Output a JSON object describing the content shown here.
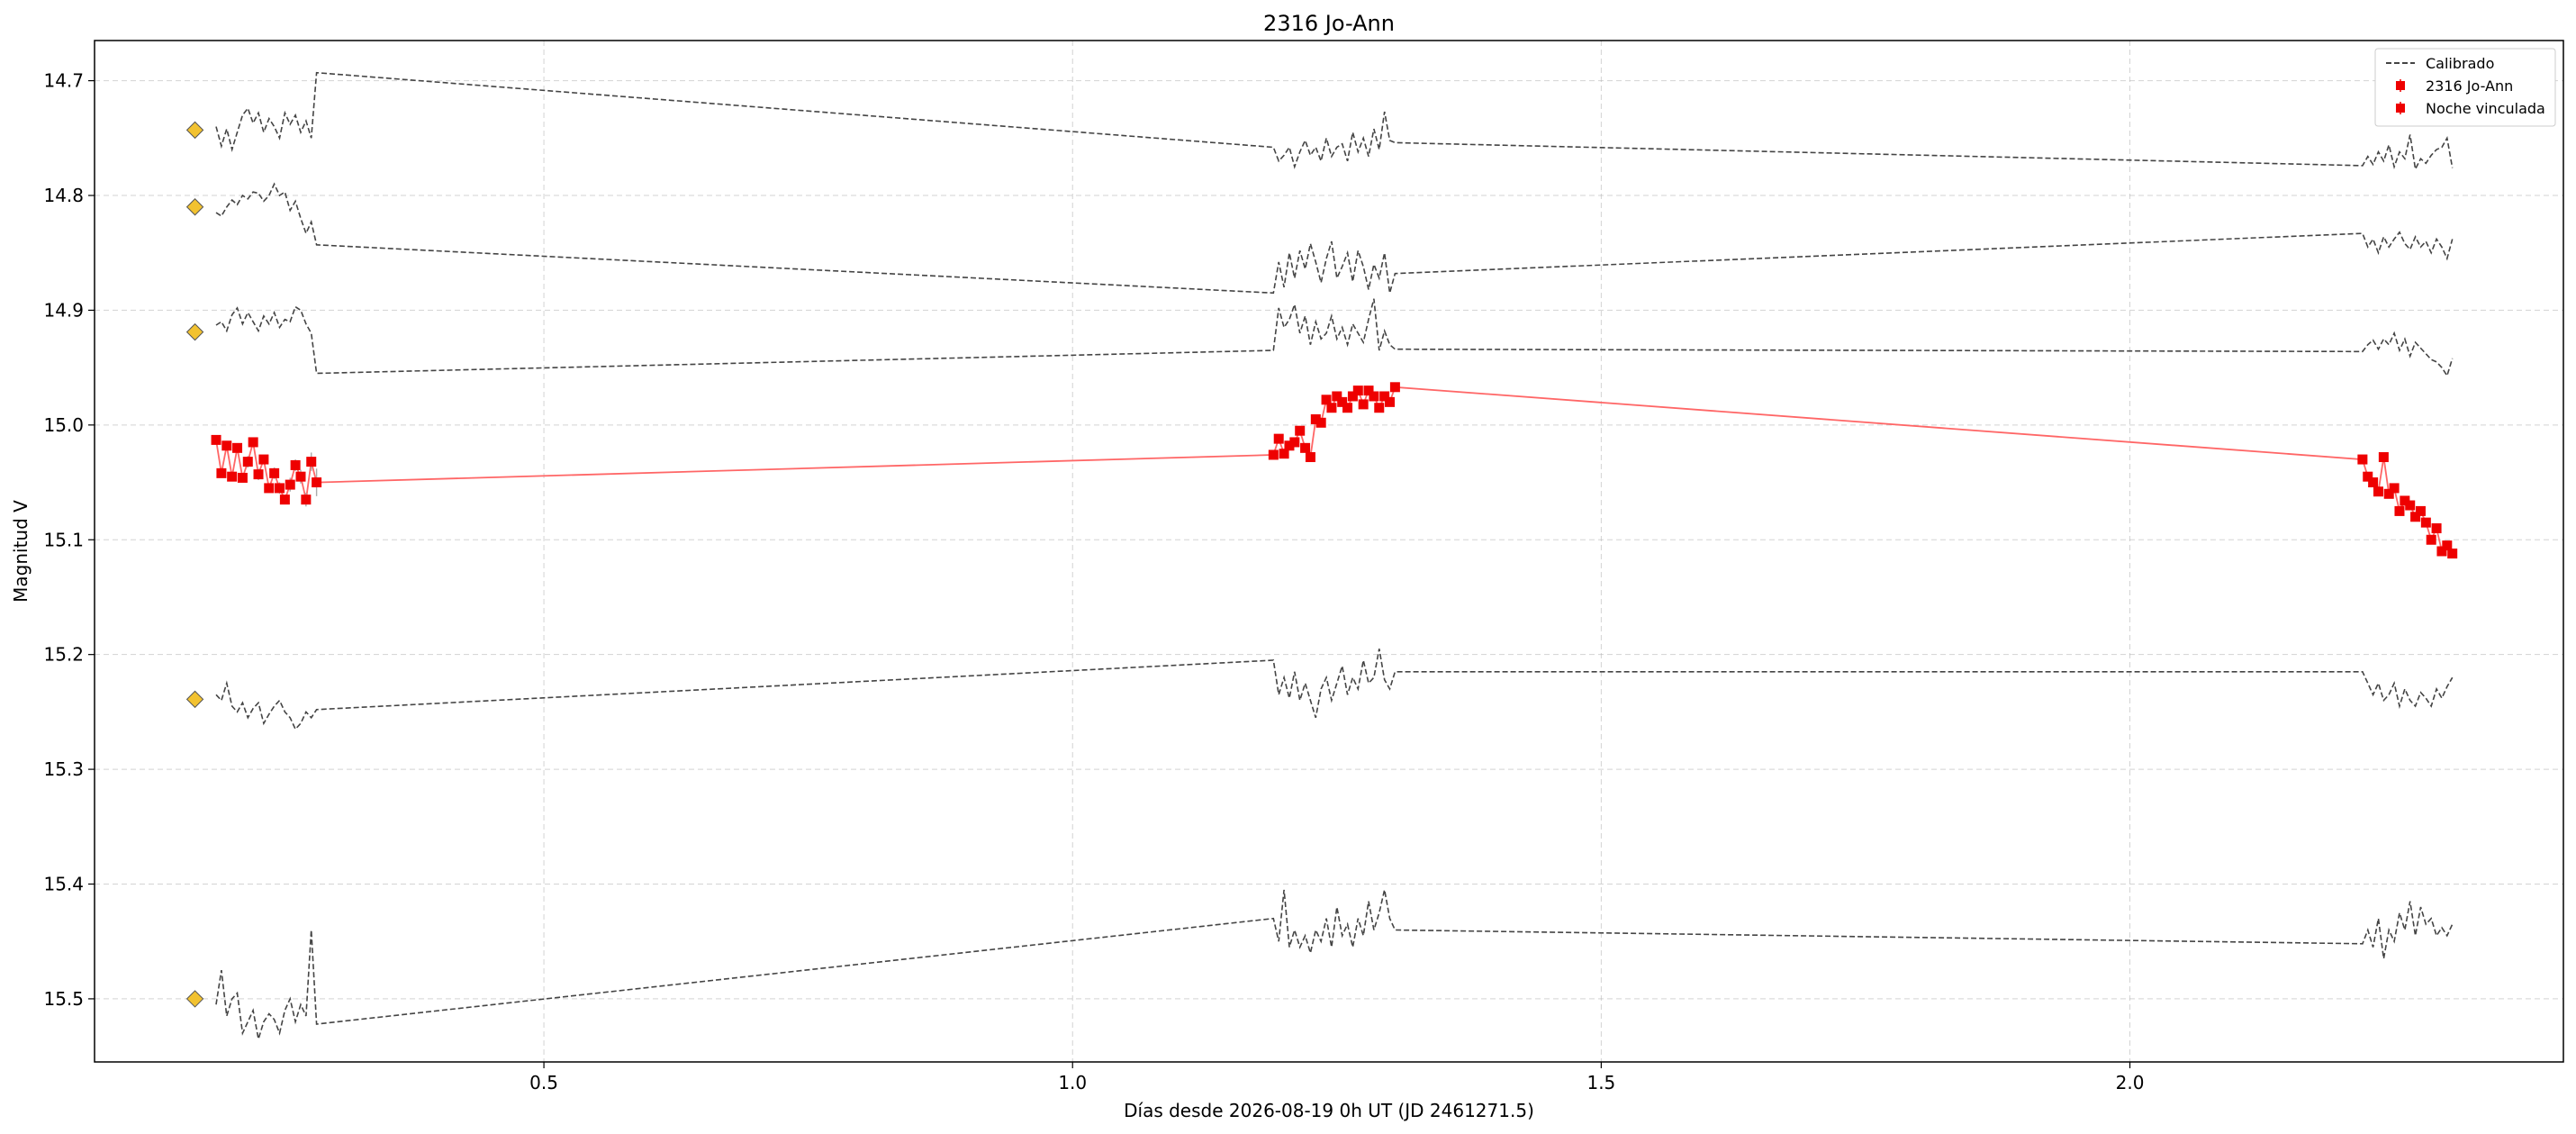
{
  "chart_data": {
    "type": "line",
    "title": "2316 Jo-Ann",
    "xlabel": "Días desde 2026-08-19 0h UT (JD 2461271.5)",
    "ylabel": "Magnitud V",
    "xlim": [
      0.075,
      2.41
    ],
    "ylim": [
      15.555,
      14.665
    ],
    "y_inverted": true,
    "grid": true,
    "legend_position": "top-right",
    "x_ticks": [
      0.5,
      1.0,
      1.5,
      2.0
    ],
    "x_tick_labels": [
      "0.5",
      "1.0",
      "1.5",
      "2.0"
    ],
    "y_ticks": [
      14.7,
      14.8,
      14.9,
      15.0,
      15.1,
      15.2,
      15.3,
      15.4,
      15.5
    ],
    "y_tick_labels": [
      "14.7",
      "14.8",
      "14.9",
      "15.0",
      "15.1",
      "15.2",
      "15.3",
      "15.4",
      "15.5"
    ],
    "legend": [
      {
        "label": "Calibrado",
        "style": "dashed-line",
        "color": "#444444"
      },
      {
        "label": "2316 Jo-Ann",
        "style": "red-square-errorbar",
        "color": "#ee0000"
      },
      {
        "label": "Noche vinculada",
        "style": "red-square-errorbar",
        "color": "#ee0000"
      }
    ],
    "colors": {
      "target": "#ee0000",
      "target_line": "#ff6666",
      "comparison": "#444444",
      "marker_fill": "#f2c230",
      "errorbar": "#aaaaaa"
    },
    "comparison_series": [
      {
        "base": 14.743,
        "x": [
          0.19,
          0.195,
          0.2,
          0.205,
          0.21,
          0.215,
          0.22,
          0.225,
          0.23,
          0.235,
          0.24,
          0.245,
          0.25,
          0.255,
          0.26,
          0.265,
          0.27,
          0.275,
          0.28,
          0.285,
          1.19,
          1.195,
          1.2,
          1.205,
          1.21,
          1.215,
          1.22,
          1.225,
          1.23,
          1.235,
          1.24,
          1.245,
          1.25,
          1.255,
          1.26,
          1.265,
          1.27,
          1.275,
          1.28,
          1.285,
          1.29,
          1.295,
          1.3,
          1.305,
          2.22,
          2.225,
          2.23,
          2.235,
          2.24,
          2.245,
          2.25,
          2.255,
          2.26,
          2.265,
          2.27,
          2.275,
          2.28,
          2.285,
          2.29,
          2.295,
          2.3,
          2.305
        ],
        "y": [
          14.74,
          14.757,
          14.742,
          14.76,
          14.745,
          14.73,
          14.724,
          14.737,
          14.728,
          14.745,
          14.733,
          14.74,
          14.75,
          14.728,
          14.738,
          14.73,
          14.745,
          14.735,
          14.75,
          14.693,
          14.758,
          14.77,
          14.765,
          14.758,
          14.775,
          14.762,
          14.752,
          14.765,
          14.758,
          14.77,
          14.75,
          14.766,
          14.758,
          14.755,
          14.77,
          14.745,
          14.762,
          14.75,
          14.766,
          14.742,
          14.76,
          14.727,
          14.752,
          14.754,
          14.774,
          14.766,
          14.773,
          14.762,
          14.77,
          14.756,
          14.775,
          14.762,
          14.768,
          14.747,
          14.777,
          14.768,
          14.772,
          14.765,
          14.76,
          14.758,
          14.75,
          14.776
        ]
      },
      {
        "base": 14.81,
        "x": [
          0.19,
          0.195,
          0.2,
          0.205,
          0.21,
          0.215,
          0.22,
          0.225,
          0.23,
          0.235,
          0.24,
          0.245,
          0.25,
          0.255,
          0.26,
          0.265,
          0.27,
          0.275,
          0.28,
          0.285,
          1.19,
          1.195,
          1.2,
          1.205,
          1.21,
          1.215,
          1.22,
          1.225,
          1.23,
          1.235,
          1.24,
          1.245,
          1.25,
          1.255,
          1.26,
          1.265,
          1.27,
          1.275,
          1.28,
          1.285,
          1.29,
          1.295,
          1.3,
          1.305,
          2.22,
          2.225,
          2.23,
          2.235,
          2.24,
          2.245,
          2.25,
          2.255,
          2.26,
          2.265,
          2.27,
          2.275,
          2.28,
          2.285,
          2.29,
          2.295,
          2.3,
          2.305
        ],
        "y": [
          14.815,
          14.818,
          14.81,
          14.804,
          14.808,
          14.8,
          14.803,
          14.797,
          14.798,
          14.805,
          14.8,
          14.79,
          14.8,
          14.797,
          14.813,
          14.805,
          14.82,
          14.833,
          14.823,
          14.843,
          14.885,
          14.858,
          14.88,
          14.85,
          14.872,
          14.848,
          14.864,
          14.842,
          14.858,
          14.876,
          14.855,
          14.84,
          14.872,
          14.862,
          14.85,
          14.875,
          14.848,
          14.862,
          14.882,
          14.86,
          14.872,
          14.85,
          14.885,
          14.868,
          14.833,
          14.845,
          14.838,
          14.85,
          14.836,
          14.845,
          14.838,
          14.832,
          14.842,
          14.847,
          14.836,
          14.845,
          14.84,
          14.85,
          14.838,
          14.845,
          14.855,
          14.838
        ]
      },
      {
        "base": 14.919,
        "x": [
          0.19,
          0.195,
          0.2,
          0.205,
          0.21,
          0.215,
          0.22,
          0.225,
          0.23,
          0.235,
          0.24,
          0.245,
          0.25,
          0.255,
          0.26,
          0.265,
          0.27,
          0.275,
          0.28,
          0.285,
          1.19,
          1.195,
          1.2,
          1.205,
          1.21,
          1.215,
          1.22,
          1.225,
          1.23,
          1.235,
          1.24,
          1.245,
          1.25,
          1.255,
          1.26,
          1.265,
          1.27,
          1.275,
          1.28,
          1.285,
          1.29,
          1.295,
          1.3,
          1.305,
          2.22,
          2.225,
          2.23,
          2.235,
          2.24,
          2.245,
          2.25,
          2.255,
          2.26,
          2.265,
          2.27,
          2.275,
          2.28,
          2.285,
          2.29,
          2.295,
          2.3,
          2.305
        ],
        "y": [
          14.913,
          14.91,
          14.918,
          14.904,
          14.898,
          14.912,
          14.902,
          14.91,
          14.918,
          14.905,
          14.912,
          14.902,
          14.915,
          14.908,
          14.91,
          14.897,
          14.9,
          14.912,
          14.92,
          14.955,
          14.935,
          14.898,
          14.915,
          14.908,
          14.895,
          14.92,
          14.905,
          14.93,
          14.91,
          14.925,
          14.92,
          14.905,
          14.925,
          14.915,
          14.93,
          14.912,
          14.92,
          14.928,
          14.908,
          14.89,
          14.935,
          14.918,
          14.93,
          14.934,
          14.936,
          14.93,
          14.926,
          14.934,
          14.925,
          14.93,
          14.92,
          14.935,
          14.925,
          14.94,
          14.928,
          14.933,
          14.938,
          14.943,
          14.945,
          14.95,
          14.957,
          14.942
        ]
      },
      {
        "base": 15.239,
        "x": [
          0.19,
          0.195,
          0.2,
          0.205,
          0.21,
          0.215,
          0.22,
          0.225,
          0.23,
          0.235,
          0.24,
          0.245,
          0.25,
          0.255,
          0.26,
          0.265,
          0.27,
          0.275,
          0.28,
          0.285,
          1.19,
          1.195,
          1.2,
          1.205,
          1.21,
          1.215,
          1.22,
          1.225,
          1.23,
          1.235,
          1.24,
          1.245,
          1.25,
          1.255,
          1.26,
          1.265,
          1.27,
          1.275,
          1.28,
          1.285,
          1.29,
          1.295,
          1.3,
          1.305,
          2.22,
          2.225,
          2.23,
          2.235,
          2.24,
          2.245,
          2.25,
          2.255,
          2.26,
          2.265,
          2.27,
          2.275,
          2.28,
          2.285,
          2.29,
          2.295,
          2.3,
          2.305
        ],
        "y": [
          15.235,
          15.24,
          15.225,
          15.245,
          15.25,
          15.242,
          15.255,
          15.247,
          15.242,
          15.26,
          15.252,
          15.245,
          15.24,
          15.25,
          15.255,
          15.265,
          15.26,
          15.25,
          15.255,
          15.248,
          15.205,
          15.235,
          15.22,
          15.238,
          15.215,
          15.24,
          15.225,
          15.24,
          15.255,
          15.23,
          15.22,
          15.24,
          15.225,
          15.21,
          15.235,
          15.22,
          15.23,
          15.205,
          15.225,
          15.22,
          15.195,
          15.222,
          15.23,
          15.215,
          15.215,
          15.225,
          15.235,
          15.225,
          15.24,
          15.235,
          15.225,
          15.245,
          15.23,
          15.24,
          15.245,
          15.233,
          15.238,
          15.245,
          15.23,
          15.238,
          15.228,
          15.22
        ]
      },
      {
        "base": 15.5,
        "x": [
          0.19,
          0.195,
          0.2,
          0.205,
          0.21,
          0.215,
          0.22,
          0.225,
          0.23,
          0.235,
          0.24,
          0.245,
          0.25,
          0.255,
          0.26,
          0.265,
          0.27,
          0.275,
          0.28,
          0.285,
          1.19,
          1.195,
          1.2,
          1.205,
          1.21,
          1.215,
          1.22,
          1.225,
          1.23,
          1.235,
          1.24,
          1.245,
          1.25,
          1.255,
          1.26,
          1.265,
          1.27,
          1.275,
          1.28,
          1.285,
          1.29,
          1.295,
          1.3,
          1.305,
          2.22,
          2.225,
          2.23,
          2.235,
          2.24,
          2.245,
          2.25,
          2.255,
          2.26,
          2.265,
          2.27,
          2.275,
          2.28,
          2.285,
          2.29,
          2.295,
          2.3,
          2.305
        ],
        "y": [
          15.505,
          15.475,
          15.515,
          15.5,
          15.495,
          15.53,
          15.52,
          15.51,
          15.535,
          15.52,
          15.513,
          15.518,
          15.53,
          15.51,
          15.5,
          15.52,
          15.505,
          15.515,
          15.44,
          15.522,
          15.43,
          15.45,
          15.405,
          15.455,
          15.44,
          15.455,
          15.445,
          15.46,
          15.44,
          15.45,
          15.43,
          15.455,
          15.42,
          15.445,
          15.435,
          15.455,
          15.43,
          15.445,
          15.415,
          15.44,
          15.425,
          15.405,
          15.43,
          15.44,
          15.452,
          15.44,
          15.455,
          15.43,
          15.465,
          15.44,
          15.45,
          15.425,
          15.44,
          15.415,
          15.445,
          15.42,
          15.435,
          15.43,
          15.445,
          15.438,
          15.445,
          15.435
        ]
      }
    ],
    "target_series": {
      "name": "2316 Jo-Ann",
      "x": [
        0.19,
        0.195,
        0.2,
        0.205,
        0.21,
        0.215,
        0.22,
        0.225,
        0.23,
        0.235,
        0.24,
        0.245,
        0.25,
        0.255,
        0.26,
        0.265,
        0.27,
        0.275,
        0.28,
        0.285,
        1.19,
        1.195,
        1.2,
        1.205,
        1.21,
        1.215,
        1.22,
        1.225,
        1.23,
        1.235,
        1.24,
        1.245,
        1.25,
        1.255,
        1.26,
        1.265,
        1.27,
        1.275,
        1.28,
        1.285,
        1.29,
        1.295,
        1.3,
        1.305,
        2.22,
        2.225,
        2.23,
        2.235,
        2.24,
        2.245,
        2.25,
        2.255,
        2.26,
        2.265,
        2.27,
        2.275,
        2.28,
        2.285,
        2.29,
        2.295,
        2.3,
        2.305
      ],
      "y": [
        15.013,
        15.042,
        15.018,
        15.045,
        15.02,
        15.046,
        15.032,
        15.015,
        15.043,
        15.03,
        15.055,
        15.042,
        15.055,
        15.065,
        15.052,
        15.035,
        15.045,
        15.065,
        15.032,
        15.05,
        15.026,
        15.012,
        15.025,
        15.018,
        15.015,
        15.005,
        15.02,
        15.028,
        14.995,
        14.998,
        14.978,
        14.985,
        14.975,
        14.98,
        14.985,
        14.975,
        14.97,
        14.982,
        14.97,
        14.975,
        14.985,
        14.975,
        14.98,
        14.967,
        15.03,
        15.045,
        15.05,
        15.058,
        15.028,
        15.06,
        15.055,
        15.075,
        15.066,
        15.07,
        15.08,
        15.075,
        15.085,
        15.1,
        15.09,
        15.11,
        15.105,
        15.112
      ],
      "err": [
        0.003,
        0.003,
        0.004,
        0.003,
        0.004,
        0.003,
        0.005,
        0.004,
        0.005,
        0.003,
        0.004,
        0.005,
        0.005,
        0.004,
        0.006,
        0.005,
        0.006,
        0.006,
        0.008,
        0.012,
        0.003,
        0.003,
        0.003,
        0.003,
        0.003,
        0.003,
        0.003,
        0.003,
        0.003,
        0.003,
        0.003,
        0.003,
        0.003,
        0.003,
        0.003,
        0.003,
        0.003,
        0.003,
        0.003,
        0.003,
        0.003,
        0.003,
        0.003,
        0.003,
        0.004,
        0.004,
        0.004,
        0.004,
        0.004,
        0.004,
        0.004,
        0.004,
        0.004,
        0.004,
        0.004,
        0.004,
        0.004,
        0.004,
        0.004,
        0.004,
        0.004,
        0.004
      ]
    }
  }
}
